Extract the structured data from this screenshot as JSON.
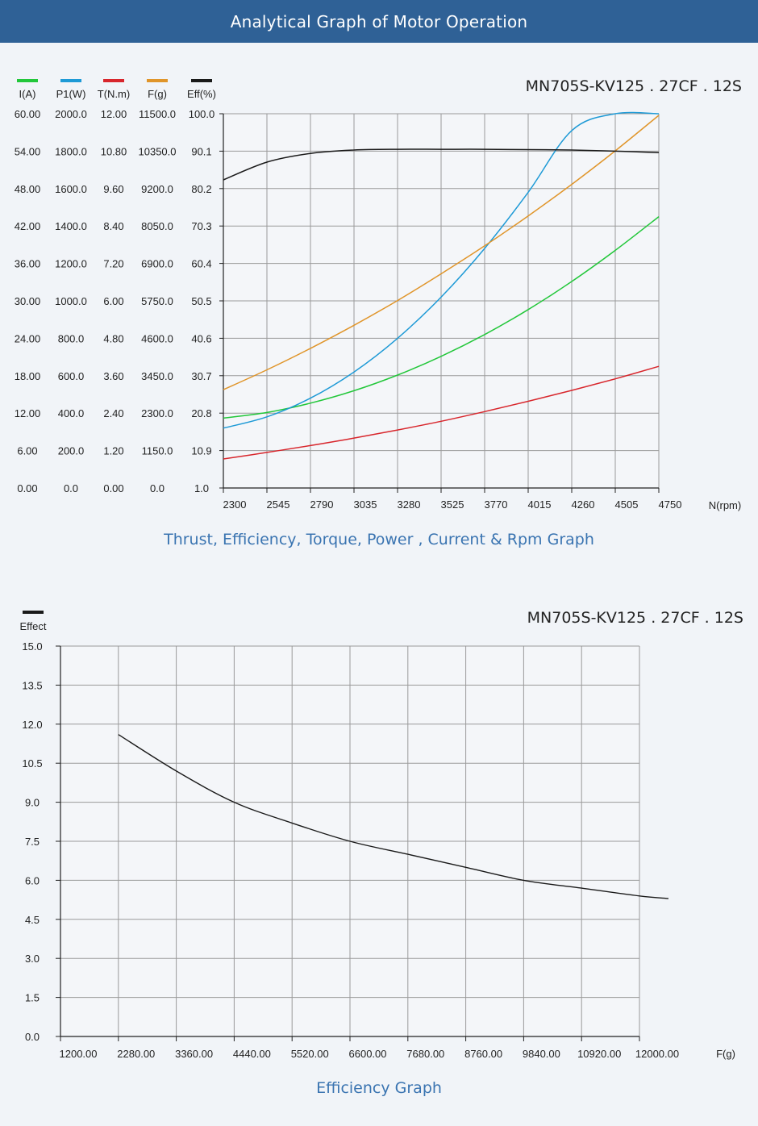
{
  "header": {
    "title": "Analytical Graph of Motor Operation"
  },
  "chart_data": [
    {
      "type": "line",
      "title": "MN705S-KV125 . 27CF . 12S",
      "caption": "Thrust, Efficiency, Torque, Power , Current & Rpm Graph",
      "xlabel": "N(rpm)",
      "x_ticks": [
        "2300",
        "2545",
        "2790",
        "3035",
        "3280",
        "3525",
        "3770",
        "4015",
        "4260",
        "4505",
        "4750"
      ],
      "xlim": [
        2300,
        4750
      ],
      "axes": [
        {
          "key": "I",
          "label": "I(A)",
          "color": "#22c73a",
          "range": [
            0,
            60
          ],
          "ticks": [
            "0.00",
            "6.00",
            "12.00",
            "18.00",
            "24.00",
            "30.00",
            "36.00",
            "42.00",
            "48.00",
            "54.00",
            "60.00"
          ]
        },
        {
          "key": "P1",
          "label": "P1(W)",
          "color": "#1e9ad6",
          "range": [
            0,
            2000
          ],
          "ticks": [
            "0.0",
            "200.0",
            "400.0",
            "600.0",
            "800.0",
            "1000.0",
            "1200.0",
            "1400.0",
            "1600.0",
            "1800.0",
            "2000.0"
          ]
        },
        {
          "key": "T",
          "label": "T(N.m)",
          "color": "#d8262c",
          "range": [
            0,
            12
          ],
          "ticks": [
            "0.00",
            "1.20",
            "2.40",
            "3.60",
            "4.80",
            "6.00",
            "7.20",
            "8.40",
            "9.60",
            "10.80",
            "12.00"
          ]
        },
        {
          "key": "F",
          "label": "F(g)",
          "color": "#e0952a",
          "range": [
            0,
            11500
          ],
          "ticks": [
            "0.0",
            "1150.0",
            "2300.0",
            "3450.0",
            "4600.0",
            "5750.0",
            "6900.0",
            "8050.0",
            "9200.0",
            "10350.0",
            "11500.0"
          ]
        },
        {
          "key": "Eff",
          "label": "Eff(%)",
          "color": "#1a1a1a",
          "range": [
            1,
            100
          ],
          "ticks": [
            "1.0",
            "10.9",
            "20.8",
            "30.7",
            "40.6",
            "50.5",
            "60.4",
            "70.3",
            "80.2",
            "90.1",
            "100.0"
          ]
        }
      ],
      "series": [
        {
          "axis": "I",
          "x": [
            2300,
            2545,
            2790,
            3035,
            3280,
            3525,
            3770,
            4015,
            4260,
            4505,
            4750
          ],
          "values": [
            11.2,
            12.1,
            13.6,
            15.6,
            18.1,
            21.1,
            24.6,
            28.6,
            33.1,
            38.1,
            43.5
          ]
        },
        {
          "axis": "P1",
          "x": [
            2300,
            2545,
            2790,
            3035,
            3280,
            3525,
            3770,
            4015,
            4260,
            4505,
            4750
          ],
          "values": [
            320,
            380,
            480,
            620,
            800,
            1020,
            1280,
            1580,
            1910,
            2000,
            2000
          ]
        },
        {
          "axis": "P1",
          "x": [
            2300,
            2545,
            2790,
            3035,
            3280,
            3525,
            3770,
            4015,
            4260,
            4505,
            4750
          ],
          "values": [
            320,
            380,
            480,
            620,
            800,
            1020,
            1260,
            1530,
            1840,
            2000,
            2000
          ]
        },
        {
          "axis": "T",
          "x": [
            2300,
            2545,
            2790,
            3035,
            3280,
            3525,
            3770,
            4015,
            4260,
            4505,
            4750
          ],
          "values": [
            0.93,
            1.14,
            1.36,
            1.6,
            1.86,
            2.14,
            2.45,
            2.78,
            3.13,
            3.5,
            3.9
          ]
        },
        {
          "axis": "F",
          "x": [
            2300,
            2545,
            2790,
            3035,
            3280,
            3525,
            3770,
            4015,
            4260,
            4505,
            4750
          ],
          "values": [
            3020,
            3630,
            4290,
            5000,
            5760,
            6580,
            7440,
            8360,
            9330,
            10360,
            11450
          ]
        },
        {
          "axis": "Eff",
          "x": [
            2300,
            2545,
            2790,
            3035,
            3280,
            3525,
            3770,
            4015,
            4260,
            4505,
            4750
          ],
          "values": [
            82.5,
            87.2,
            89.5,
            90.4,
            90.6,
            90.6,
            90.6,
            90.5,
            90.4,
            90.1,
            89.7
          ]
        }
      ],
      "grid": true,
      "legend": "top-left"
    },
    {
      "type": "line",
      "title": "MN705S-KV125 . 27CF . 12S",
      "caption": "Efficiency Graph",
      "xlabel": "F(g)",
      "legend_label": "Effect",
      "x_ticks": [
        "1200.00",
        "2280.00",
        "3360.00",
        "4440.00",
        "5520.00",
        "6600.00",
        "7680.00",
        "8760.00",
        "9840.00",
        "10920.00",
        "12000.00"
      ],
      "y_ticks": [
        "0.0",
        "1.5",
        "3.0",
        "4.5",
        "6.0",
        "7.5",
        "9.0",
        "10.5",
        "12.0",
        "13.5",
        "15.0"
      ],
      "ylim": [
        0,
        15
      ],
      "series": [
        {
          "name": "Effect",
          "x": [
            1,
            2,
            3,
            4,
            5,
            6,
            7,
            8,
            9,
            10,
            10.5
          ],
          "values": [
            11.6,
            10.2,
            9.0,
            8.2,
            7.5,
            7.0,
            6.5,
            6.0,
            5.7,
            5.4,
            5.3
          ]
        }
      ],
      "grid": true
    }
  ]
}
